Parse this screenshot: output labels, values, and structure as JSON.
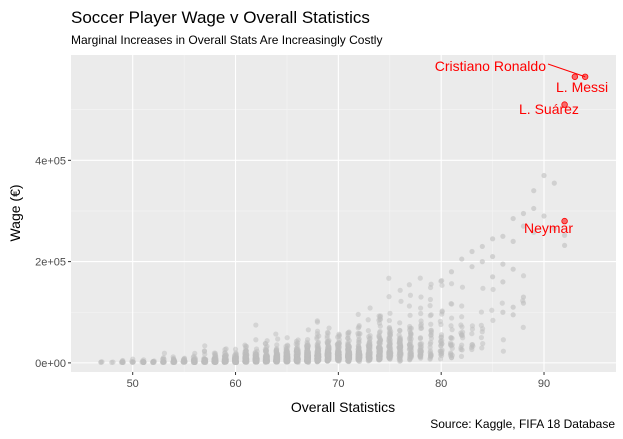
{
  "chart_data": {
    "type": "scatter",
    "title": "Soccer Player Wage v Overall Statistics",
    "subtitle": "Marginal Increases in Overall Stats Are Increasingly Costly",
    "caption": "Source: Kaggle, FIFA 18 Database",
    "xlabel": "Overall Statistics",
    "ylabel": "Wage (€)",
    "xlim": [
      44,
      97
    ],
    "ylim": [
      -18000,
      608000
    ],
    "xticks": [
      50,
      60,
      70,
      80,
      90
    ],
    "yticks": [
      0,
      200000,
      400000
    ],
    "yticklabels": [
      "0e+00",
      "2e+05",
      "4e+05"
    ],
    "grid": true,
    "point_color": "#BEBEBE",
    "highlight_color": "#FF0000",
    "background": "#EBEBEB",
    "highlighted": [
      {
        "name": "Cristiano Ronaldo",
        "x": 94,
        "y": 565000
      },
      {
        "name": "L. Messi",
        "x": 93,
        "y": 565000
      },
      {
        "name": "L. Suárez",
        "x": 92,
        "y": 510000
      },
      {
        "name": "Neymar",
        "x": 92,
        "y": 280000
      }
    ],
    "notable_points": [
      {
        "x": 90,
        "y": 370000
      },
      {
        "x": 91,
        "y": 355000
      },
      {
        "x": 89,
        "y": 340000
      },
      {
        "x": 89,
        "y": 305000
      },
      {
        "x": 88,
        "y": 295000
      },
      {
        "x": 90,
        "y": 290000
      },
      {
        "x": 87,
        "y": 285000
      },
      {
        "x": 88,
        "y": 270000
      },
      {
        "x": 91,
        "y": 265000
      },
      {
        "x": 89,
        "y": 258000
      },
      {
        "x": 92,
        "y": 252000
      },
      {
        "x": 86,
        "y": 250000
      },
      {
        "x": 85,
        "y": 245000
      },
      {
        "x": 87,
        "y": 240000
      },
      {
        "x": 92,
        "y": 232000
      },
      {
        "x": 84,
        "y": 230000
      },
      {
        "x": 83,
        "y": 220000
      },
      {
        "x": 85,
        "y": 210000
      },
      {
        "x": 82,
        "y": 205000
      },
      {
        "x": 84,
        "y": 200000
      },
      {
        "x": 86,
        "y": 195000
      },
      {
        "x": 83,
        "y": 190000
      },
      {
        "x": 87,
        "y": 185000
      },
      {
        "x": 81,
        "y": 180000
      },
      {
        "x": 85,
        "y": 170000
      },
      {
        "x": 86,
        "y": 160000
      },
      {
        "x": 88,
        "y": 130000
      },
      {
        "x": 87,
        "y": 110000
      },
      {
        "x": 86,
        "y": 100000
      },
      {
        "x": 87,
        "y": 95000
      },
      {
        "x": 88,
        "y": 118000
      }
    ]
  }
}
